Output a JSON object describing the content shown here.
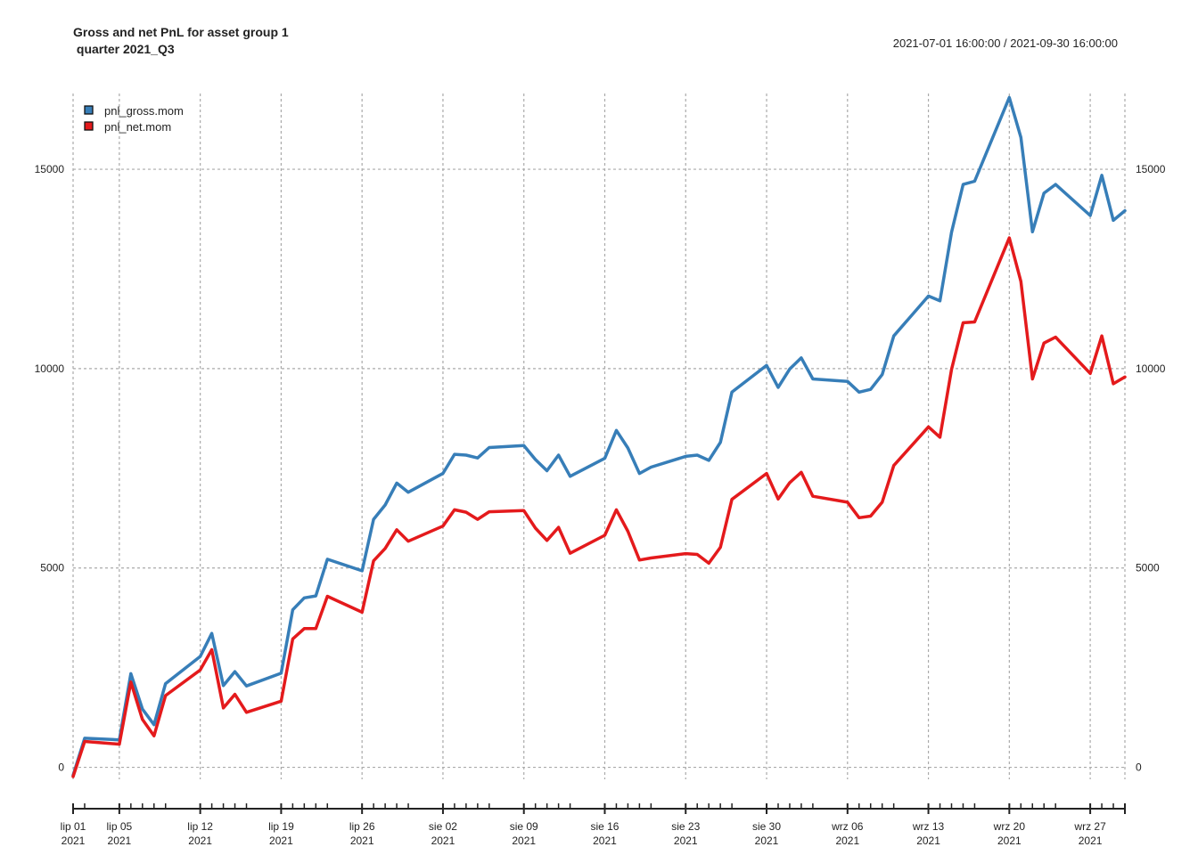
{
  "header": {
    "title_line1": "Gross and net PnL for asset group 1",
    "title_line2": " quarter 2021_Q3",
    "date_range": "2021-07-01 16:00:00 / 2021-09-30 16:00:00"
  },
  "chart_data": {
    "type": "line",
    "ylim": [
      -300,
      16900
    ],
    "y_ticks": [
      0,
      5000,
      10000,
      15000
    ],
    "y_tick_labels": [
      "0",
      "5000",
      "10000",
      "15000"
    ],
    "x_range": [
      "2021-07-01",
      "2021-09-30"
    ],
    "x_major_ticks": [
      {
        "date": "2021-07-01",
        "label1": "lip 01",
        "label2": "2021"
      },
      {
        "date": "2021-07-05",
        "label1": "lip 05",
        "label2": "2021"
      },
      {
        "date": "2021-07-12",
        "label1": "lip 12",
        "label2": "2021"
      },
      {
        "date": "2021-07-19",
        "label1": "lip 19",
        "label2": "2021"
      },
      {
        "date": "2021-07-26",
        "label1": "lip 26",
        "label2": "2021"
      },
      {
        "date": "2021-08-02",
        "label1": "sie 02",
        "label2": "2021"
      },
      {
        "date": "2021-08-09",
        "label1": "sie 09",
        "label2": "2021"
      },
      {
        "date": "2021-08-16",
        "label1": "sie 16",
        "label2": "2021"
      },
      {
        "date": "2021-08-23",
        "label1": "sie 23",
        "label2": "2021"
      },
      {
        "date": "2021-08-30",
        "label1": "sie 30",
        "label2": "2021"
      },
      {
        "date": "2021-09-06",
        "label1": "wrz 06",
        "label2": "2021"
      },
      {
        "date": "2021-09-13",
        "label1": "wrz 13",
        "label2": "2021"
      },
      {
        "date": "2021-09-20",
        "label1": "wrz 20",
        "label2": "2021"
      },
      {
        "date": "2021-09-27",
        "label1": "wrz 27",
        "label2": "2021"
      }
    ],
    "grid": true,
    "legend_position": "top-left",
    "series": [
      {
        "name": "pnl_gross.mom",
        "color": "#377eb8",
        "points": [
          [
            "2021-07-01",
            -200
          ],
          [
            "2021-07-02",
            730
          ],
          [
            "2021-07-05",
            690
          ],
          [
            "2021-07-06",
            2350
          ],
          [
            "2021-07-07",
            1460
          ],
          [
            "2021-07-08",
            1070
          ],
          [
            "2021-07-09",
            2100
          ],
          [
            "2021-07-12",
            2780
          ],
          [
            "2021-07-13",
            3360
          ],
          [
            "2021-07-14",
            2050
          ],
          [
            "2021-07-15",
            2400
          ],
          [
            "2021-07-16",
            2040
          ],
          [
            "2021-07-19",
            2360
          ],
          [
            "2021-07-20",
            3950
          ],
          [
            "2021-07-21",
            4250
          ],
          [
            "2021-07-22",
            4300
          ],
          [
            "2021-07-23",
            5220
          ],
          [
            "2021-07-26",
            4930
          ],
          [
            "2021-07-27",
            6220
          ],
          [
            "2021-07-28",
            6580
          ],
          [
            "2021-07-29",
            7130
          ],
          [
            "2021-07-30",
            6900
          ],
          [
            "2021-08-02",
            7370
          ],
          [
            "2021-08-03",
            7850
          ],
          [
            "2021-08-04",
            7830
          ],
          [
            "2021-08-05",
            7760
          ],
          [
            "2021-08-06",
            8020
          ],
          [
            "2021-08-09",
            8070
          ],
          [
            "2021-08-10",
            7720
          ],
          [
            "2021-08-11",
            7440
          ],
          [
            "2021-08-12",
            7830
          ],
          [
            "2021-08-13",
            7300
          ],
          [
            "2021-08-16",
            7750
          ],
          [
            "2021-08-17",
            8450
          ],
          [
            "2021-08-18",
            8010
          ],
          [
            "2021-08-19",
            7370
          ],
          [
            "2021-08-20",
            7530
          ],
          [
            "2021-08-23",
            7800
          ],
          [
            "2021-08-24",
            7830
          ],
          [
            "2021-08-25",
            7700
          ],
          [
            "2021-08-26",
            8150
          ],
          [
            "2021-08-27",
            9410
          ],
          [
            "2021-08-30",
            10080
          ],
          [
            "2021-08-31",
            9530
          ],
          [
            "2021-09-01",
            9990
          ],
          [
            "2021-09-02",
            10270
          ],
          [
            "2021-09-03",
            9740
          ],
          [
            "2021-09-06",
            9680
          ],
          [
            "2021-09-07",
            9410
          ],
          [
            "2021-09-08",
            9480
          ],
          [
            "2021-09-09",
            9850
          ],
          [
            "2021-09-10",
            10820
          ],
          [
            "2021-09-13",
            11820
          ],
          [
            "2021-09-14",
            11700
          ],
          [
            "2021-09-15",
            13420
          ],
          [
            "2021-09-16",
            14620
          ],
          [
            "2021-09-17",
            14700
          ],
          [
            "2021-09-20",
            16800
          ],
          [
            "2021-09-21",
            15800
          ],
          [
            "2021-09-22",
            13430
          ],
          [
            "2021-09-23",
            14400
          ],
          [
            "2021-09-24",
            14620
          ],
          [
            "2021-09-27",
            13840
          ],
          [
            "2021-09-28",
            14850
          ],
          [
            "2021-09-29",
            13720
          ],
          [
            "2021-09-30",
            13960
          ]
        ]
      },
      {
        "name": "pnl_net.mom",
        "color": "#e41a1c",
        "points": [
          [
            "2021-07-01",
            -230
          ],
          [
            "2021-07-02",
            650
          ],
          [
            "2021-07-05",
            580
          ],
          [
            "2021-07-06",
            2140
          ],
          [
            "2021-07-07",
            1200
          ],
          [
            "2021-07-08",
            790
          ],
          [
            "2021-07-09",
            1800
          ],
          [
            "2021-07-12",
            2440
          ],
          [
            "2021-07-13",
            2950
          ],
          [
            "2021-07-14",
            1490
          ],
          [
            "2021-07-15",
            1830
          ],
          [
            "2021-07-16",
            1380
          ],
          [
            "2021-07-19",
            1660
          ],
          [
            "2021-07-20",
            3220
          ],
          [
            "2021-07-21",
            3480
          ],
          [
            "2021-07-22",
            3480
          ],
          [
            "2021-07-23",
            4290
          ],
          [
            "2021-07-26",
            3890
          ],
          [
            "2021-07-27",
            5180
          ],
          [
            "2021-07-28",
            5490
          ],
          [
            "2021-07-29",
            5960
          ],
          [
            "2021-07-30",
            5670
          ],
          [
            "2021-08-02",
            6050
          ],
          [
            "2021-08-03",
            6460
          ],
          [
            "2021-08-04",
            6400
          ],
          [
            "2021-08-05",
            6220
          ],
          [
            "2021-08-06",
            6410
          ],
          [
            "2021-08-09",
            6440
          ],
          [
            "2021-08-10",
            6000
          ],
          [
            "2021-08-11",
            5690
          ],
          [
            "2021-08-12",
            6020
          ],
          [
            "2021-08-13",
            5370
          ],
          [
            "2021-08-16",
            5820
          ],
          [
            "2021-08-17",
            6460
          ],
          [
            "2021-08-18",
            5920
          ],
          [
            "2021-08-19",
            5200
          ],
          [
            "2021-08-20",
            5250
          ],
          [
            "2021-08-23",
            5360
          ],
          [
            "2021-08-24",
            5340
          ],
          [
            "2021-08-25",
            5120
          ],
          [
            "2021-08-26",
            5520
          ],
          [
            "2021-08-27",
            6720
          ],
          [
            "2021-08-30",
            7370
          ],
          [
            "2021-08-31",
            6730
          ],
          [
            "2021-09-01",
            7140
          ],
          [
            "2021-09-02",
            7400
          ],
          [
            "2021-09-03",
            6800
          ],
          [
            "2021-09-06",
            6650
          ],
          [
            "2021-09-07",
            6260
          ],
          [
            "2021-09-08",
            6300
          ],
          [
            "2021-09-09",
            6650
          ],
          [
            "2021-09-10",
            7570
          ],
          [
            "2021-09-13",
            8540
          ],
          [
            "2021-09-14",
            8280
          ],
          [
            "2021-09-15",
            9980
          ],
          [
            "2021-09-16",
            11150
          ],
          [
            "2021-09-17",
            11170
          ],
          [
            "2021-09-20",
            13280
          ],
          [
            "2021-09-21",
            12190
          ],
          [
            "2021-09-22",
            9740
          ],
          [
            "2021-09-23",
            10640
          ],
          [
            "2021-09-24",
            10790
          ],
          [
            "2021-09-27",
            9880
          ],
          [
            "2021-09-28",
            10820
          ],
          [
            "2021-09-29",
            9620
          ],
          [
            "2021-09-30",
            9790
          ]
        ]
      }
    ]
  }
}
